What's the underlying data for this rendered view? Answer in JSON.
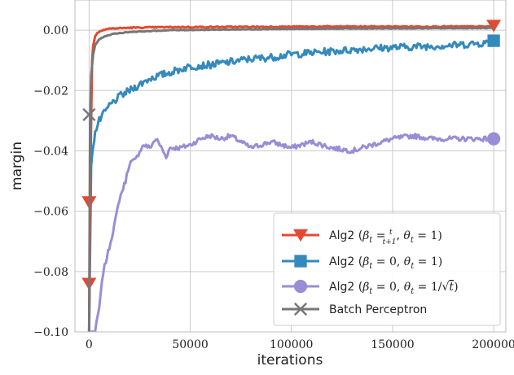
{
  "chart_data": {
    "type": "line",
    "title": "",
    "xlabel": "iterations",
    "ylabel": "margin",
    "xlim": [
      -7000,
      206000
    ],
    "ylim": [
      -0.1,
      0.01
    ],
    "x_ticks": [
      0,
      50000,
      100000,
      150000,
      200000
    ],
    "x_tick_labels": [
      "0",
      "50000",
      "100000",
      "150000",
      "200000"
    ],
    "y_ticks": [
      0.0,
      -0.02,
      -0.04,
      -0.06,
      -0.08,
      -0.1
    ],
    "y_tick_labels": [
      "0.00",
      "−0.02",
      "−0.04",
      "−0.06",
      "−0.08",
      "−0.10"
    ],
    "grid": true,
    "legend_position": "bottom-right",
    "series": [
      {
        "name": "Alg2 (β_t = t/(t+1), θ_t = 1)",
        "legend_parts": [
          "Alg2 (",
          "β",
          "t",
          " = ",
          "t",
          "t+1",
          ", ",
          "θ",
          "t",
          " = 1)"
        ],
        "color": "#e24a33",
        "marker": "triangle-down",
        "x": [
          0,
          500,
          1000,
          1500,
          2000,
          3000,
          4000,
          6000,
          10000,
          20000,
          40000,
          80000,
          120000,
          160000,
          200000
        ],
        "y": [
          -0.1,
          -0.06,
          -0.03,
          -0.01,
          -0.005,
          -0.002,
          -0.001,
          0.0,
          0.0005,
          0.0008,
          0.001,
          0.0011,
          0.0012,
          0.0012,
          0.0012
        ],
        "marker_points": [
          [
            0,
            -0.084
          ],
          [
            0,
            -0.057
          ],
          [
            200000,
            0.0015
          ]
        ]
      },
      {
        "name": "Alg2 (β_t = 0, θ_t = 1)",
        "legend_parts": [
          "Alg2 (",
          "β",
          "t",
          " = 0, ",
          "θ",
          "t",
          " = 1)"
        ],
        "color": "#348abd",
        "marker": "square",
        "x": [
          0,
          1000,
          2000,
          3000,
          5000,
          8000,
          10000,
          15000,
          20000,
          25000,
          30000,
          40000,
          50000,
          60000,
          70000,
          80000,
          90000,
          100000,
          120000,
          140000,
          160000,
          180000,
          200000
        ],
        "y": [
          -0.1,
          -0.045,
          -0.038,
          -0.034,
          -0.03,
          -0.027,
          -0.025,
          -0.022,
          -0.02,
          -0.018,
          -0.016,
          -0.014,
          -0.012,
          -0.0115,
          -0.0105,
          -0.0095,
          -0.009,
          -0.008,
          -0.007,
          -0.006,
          -0.0055,
          -0.005,
          -0.004
        ],
        "marker_points": [
          [
            200000,
            -0.0035
          ]
        ]
      },
      {
        "name": "Alg2 (β_t = 0, θ_t = 1/√t)",
        "legend_parts": [
          "Alg2 (",
          "β",
          "t",
          " = 0, ",
          "θ",
          "t",
          " = 1/",
          "√",
          "t",
          ")"
        ],
        "color": "#988ed5",
        "marker": "circle",
        "x": [
          0,
          3000,
          5000,
          7000,
          10000,
          13000,
          15000,
          18000,
          20000,
          23000,
          25000,
          27000,
          30000,
          33000,
          35000,
          38000,
          40000,
          45000,
          50000,
          55000,
          60000,
          65000,
          70000,
          80000,
          90000,
          100000,
          110000,
          120000,
          130000,
          140000,
          150000,
          160000,
          170000,
          180000,
          190000,
          200000
        ],
        "y": [
          -0.1,
          -0.1,
          -0.092,
          -0.08,
          -0.072,
          -0.063,
          -0.056,
          -0.05,
          -0.044,
          -0.043,
          -0.04,
          -0.038,
          -0.039,
          -0.036,
          -0.038,
          -0.042,
          -0.039,
          -0.039,
          -0.038,
          -0.036,
          -0.035,
          -0.036,
          -0.035,
          -0.039,
          -0.037,
          -0.039,
          -0.037,
          -0.039,
          -0.04,
          -0.038,
          -0.036,
          -0.035,
          -0.036,
          -0.036,
          -0.036,
          -0.036
        ],
        "marker_points": [
          [
            200000,
            -0.036
          ]
        ]
      },
      {
        "name": "Batch Perceptron",
        "legend_parts": [
          "Batch Perceptron"
        ],
        "color": "#777777",
        "marker": "x",
        "x": [
          0,
          500,
          1000,
          2000,
          3000,
          5000,
          8000,
          12000,
          20000,
          40000,
          80000,
          120000,
          160000,
          200000
        ],
        "y": [
          -0.1,
          -0.03,
          -0.015,
          -0.008,
          -0.005,
          -0.003,
          -0.002,
          -0.0012,
          -0.0006,
          0.0,
          0.0003,
          0.0005,
          0.0006,
          0.0007
        ],
        "marker_points": [
          [
            0,
            -0.028
          ]
        ]
      }
    ]
  }
}
